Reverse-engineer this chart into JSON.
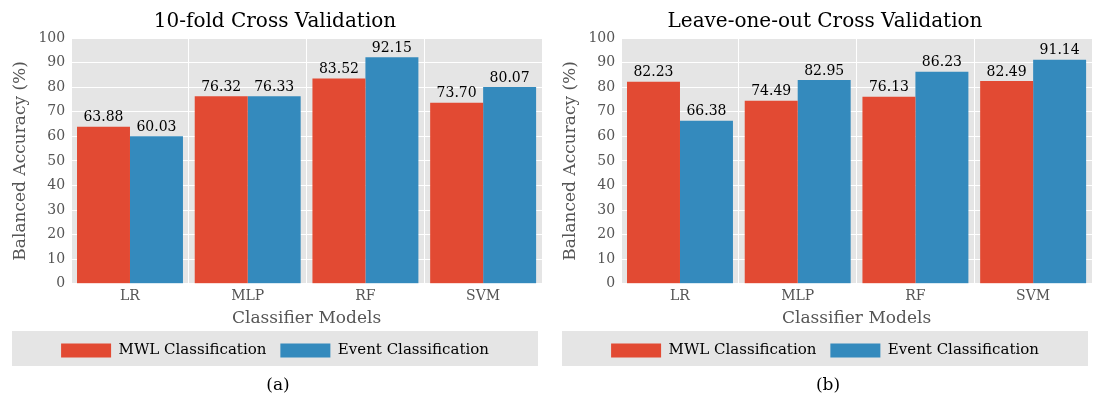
{
  "chart_data": [
    {
      "type": "bar",
      "title": "10-fold Cross Validation",
      "xlabel": "Classifier Models",
      "ylabel": "Balanced Accuracy (%)",
      "categories": [
        "LR",
        "MLP",
        "RF",
        "SVM"
      ],
      "series": [
        {
          "name": "MWL Classification",
          "color": "#e24a33",
          "values": [
            63.88,
            76.32,
            83.52,
            73.7
          ],
          "value_labels": [
            "63.88",
            "76.32",
            "83.52",
            "73.70"
          ]
        },
        {
          "name": "Event Classification",
          "color": "#348abd",
          "values": [
            60.03,
            76.33,
            92.15,
            80.07
          ],
          "value_labels": [
            "60.03",
            "76.33",
            "92.15",
            "80.07"
          ]
        }
      ],
      "ylim": [
        0,
        100
      ],
      "yticks": [
        0,
        10,
        20,
        30,
        40,
        50,
        60,
        70,
        80,
        90,
        100
      ],
      "grid": true,
      "legend": "bottom",
      "annotations": [
        "(a)"
      ]
    },
    {
      "type": "bar",
      "title": "Leave-one-out Cross Validation",
      "xlabel": "Classifier Models",
      "ylabel": "Balanced Accuracy (%)",
      "categories": [
        "LR",
        "MLP",
        "RF",
        "SVM"
      ],
      "series": [
        {
          "name": "MWL Classification",
          "color": "#e24a33",
          "values": [
            82.23,
            74.49,
            76.13,
            82.49
          ],
          "value_labels": [
            "82.23",
            "74.49",
            "76.13",
            "82.49"
          ]
        },
        {
          "name": "Event Classification",
          "color": "#348abd",
          "values": [
            66.38,
            82.95,
            86.23,
            91.14
          ],
          "value_labels": [
            "66.38",
            "82.95",
            "86.23",
            "91.14"
          ]
        }
      ],
      "ylim": [
        0,
        100
      ],
      "yticks": [
        0,
        10,
        20,
        30,
        40,
        50,
        60,
        70,
        80,
        90,
        100
      ],
      "grid": true,
      "legend": "bottom",
      "annotations": [
        "(b)"
      ]
    }
  ]
}
